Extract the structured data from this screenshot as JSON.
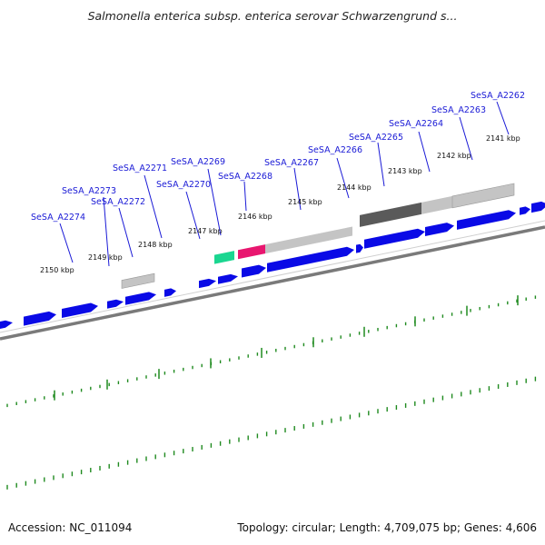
{
  "title": "Salmonella enterica subsp. enterica serovar Schwarzengrund s...",
  "footer": {
    "accession": "Accession: NC_011094",
    "summary": "Topology: circular; Length: 4,709,075 bp; Genes: 4,606"
  },
  "colors": {
    "cds": "#0a0ae6",
    "backbone": "#7a7a7a",
    "label": "#1a1ad6",
    "tick": "#1f8a1f",
    "gc_grey": "#c4c4c4",
    "gc_dark": "#5a5a5a",
    "gc_pink": "#e8166f",
    "gc_teal": "#1ad690"
  },
  "kbp_labels": [
    "2150 kbp",
    "2149 kbp",
    "2148 kbp",
    "2147 kbp",
    "2146 kbp",
    "2145 kbp",
    "2144 kbp",
    "2143 kbp",
    "2142 kbp",
    "2141 kbp"
  ],
  "gene_labels": [
    "SeSA_A2274",
    "SeSA_A2273",
    "SeSA_A2272",
    "SeSA_A2271",
    "SeSA_A2270",
    "SeSA_A2269",
    "SeSA_A2268",
    "SeSA_A2267",
    "SeSA_A2266",
    "SeSA_A2265",
    "SeSA_A2264",
    "SeSA_A2263",
    "SeSA_A2262"
  ]
}
